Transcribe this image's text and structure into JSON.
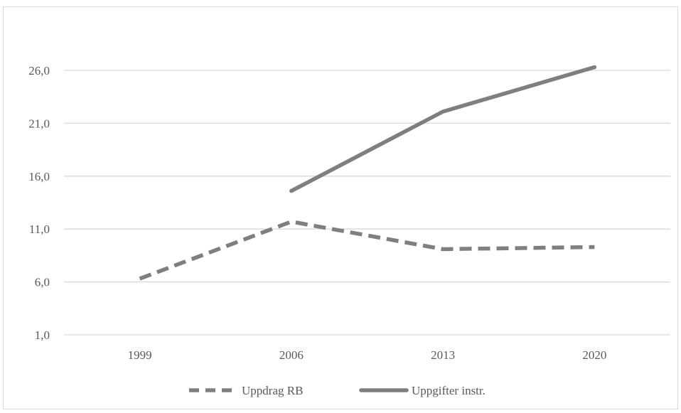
{
  "chart_data": {
    "type": "line",
    "title": "",
    "xlabel": "",
    "ylabel": "",
    "categories": [
      "1999",
      "2006",
      "2013",
      "2020"
    ],
    "y_ticks": [
      "1,0",
      "6,0",
      "11,0",
      "16,0",
      "21,0",
      "26,0"
    ],
    "ylim": [
      1,
      31
    ],
    "grid": true,
    "legend_position": "bottom",
    "series": [
      {
        "name": "Uppdrag RB",
        "style": "dashed",
        "color": "#7f7f7f",
        "values": [
          6.3,
          11.7,
          9.1,
          9.3
        ]
      },
      {
        "name": "Uppgifter instr.",
        "style": "solid",
        "color": "#7f7f7f",
        "values": [
          null,
          14.6,
          22.1,
          26.3
        ]
      }
    ]
  },
  "colors": {
    "gridline": "#d9d9d9",
    "series": "#7f7f7f",
    "text": "#595959"
  }
}
